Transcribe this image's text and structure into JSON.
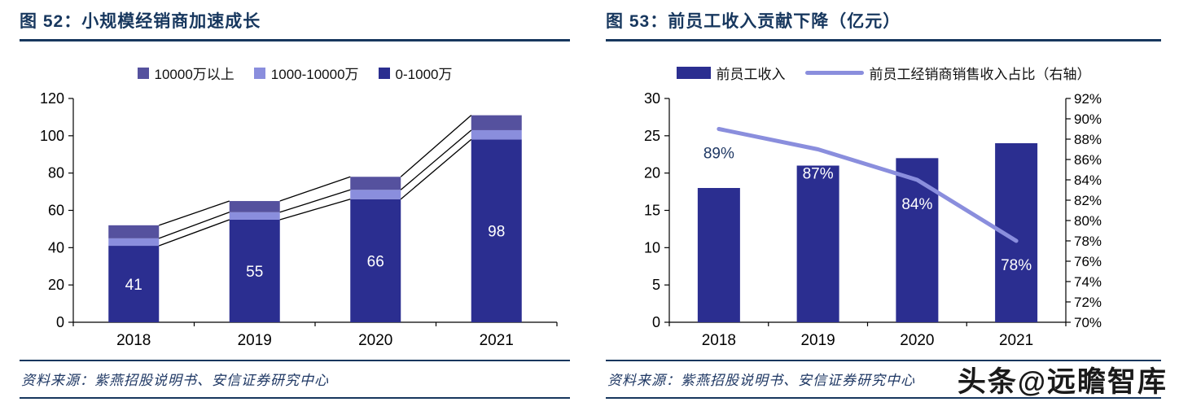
{
  "figures": [
    {
      "header": "图 52：小规模经销商加速成长",
      "source": "资料来源：紫燕招股说明书、安信证券研究中心"
    },
    {
      "header": "图 53：前员工收入贡献下降（亿元）",
      "source": "资料来源：紫燕招股说明书、安信证券研究中心"
    }
  ],
  "watermark": "头条@远瞻智库",
  "chart_data": [
    {
      "type": "bar",
      "subtype": "stacked",
      "title": "小规模经销商加速成长",
      "categories": [
        "2018",
        "2019",
        "2020",
        "2021"
      ],
      "series": [
        {
          "name": "0-1000万",
          "values": [
            41,
            55,
            66,
            98
          ],
          "color": "#2B2E90",
          "data_labels": [
            "41",
            "55",
            "66",
            "98"
          ],
          "label_color": "#FFFFFF"
        },
        {
          "name": "1000-10000万",
          "values": [
            4,
            4,
            5,
            5
          ],
          "color": "#8A8EDD"
        },
        {
          "name": "10000万以上",
          "values": [
            7,
            6,
            7,
            8
          ],
          "color": "#55519E"
        }
      ],
      "totals": [
        52,
        65,
        78,
        111
      ],
      "legend": [
        {
          "label": "10000万以上",
          "color": "#55519E",
          "shape": "square"
        },
        {
          "label": "1000-10000万",
          "color": "#8A8EDD",
          "shape": "square"
        },
        {
          "label": "0-1000万",
          "color": "#2B2E90",
          "shape": "square"
        }
      ],
      "ylim": [
        0,
        120
      ],
      "ytick_step": 20,
      "series_lines": true,
      "grid": false,
      "legend_position": "top"
    },
    {
      "type": "bar",
      "subtype": "bar-line-dual-axis",
      "title": "前员工收入贡献下降（亿元）",
      "categories": [
        "2018",
        "2019",
        "2020",
        "2021"
      ],
      "series": [
        {
          "name": "前员工收入",
          "kind": "bar",
          "axis": "left",
          "values": [
            18,
            21,
            22,
            24
          ],
          "color": "#2B2E90"
        },
        {
          "name": "前员工经销商销售收入占比（右轴）",
          "kind": "line",
          "axis": "right",
          "values": [
            89,
            87,
            84,
            78
          ],
          "color": "#8A8EDD",
          "data_labels": [
            "89%",
            "87%",
            "84%",
            "78%"
          ]
        }
      ],
      "legend": [
        {
          "label": "前员工收入",
          "color": "#2B2E90",
          "shape": "rect"
        },
        {
          "label": "前员工经销商销售收入占比（右轴）",
          "color": "#8A8EDD",
          "shape": "line"
        }
      ],
      "left_axis": {
        "min": 0,
        "max": 30,
        "step": 5
      },
      "right_axis": {
        "min": 70,
        "max": 92,
        "step": 2,
        "suffix": "%"
      },
      "grid": false,
      "legend_position": "top"
    }
  ]
}
